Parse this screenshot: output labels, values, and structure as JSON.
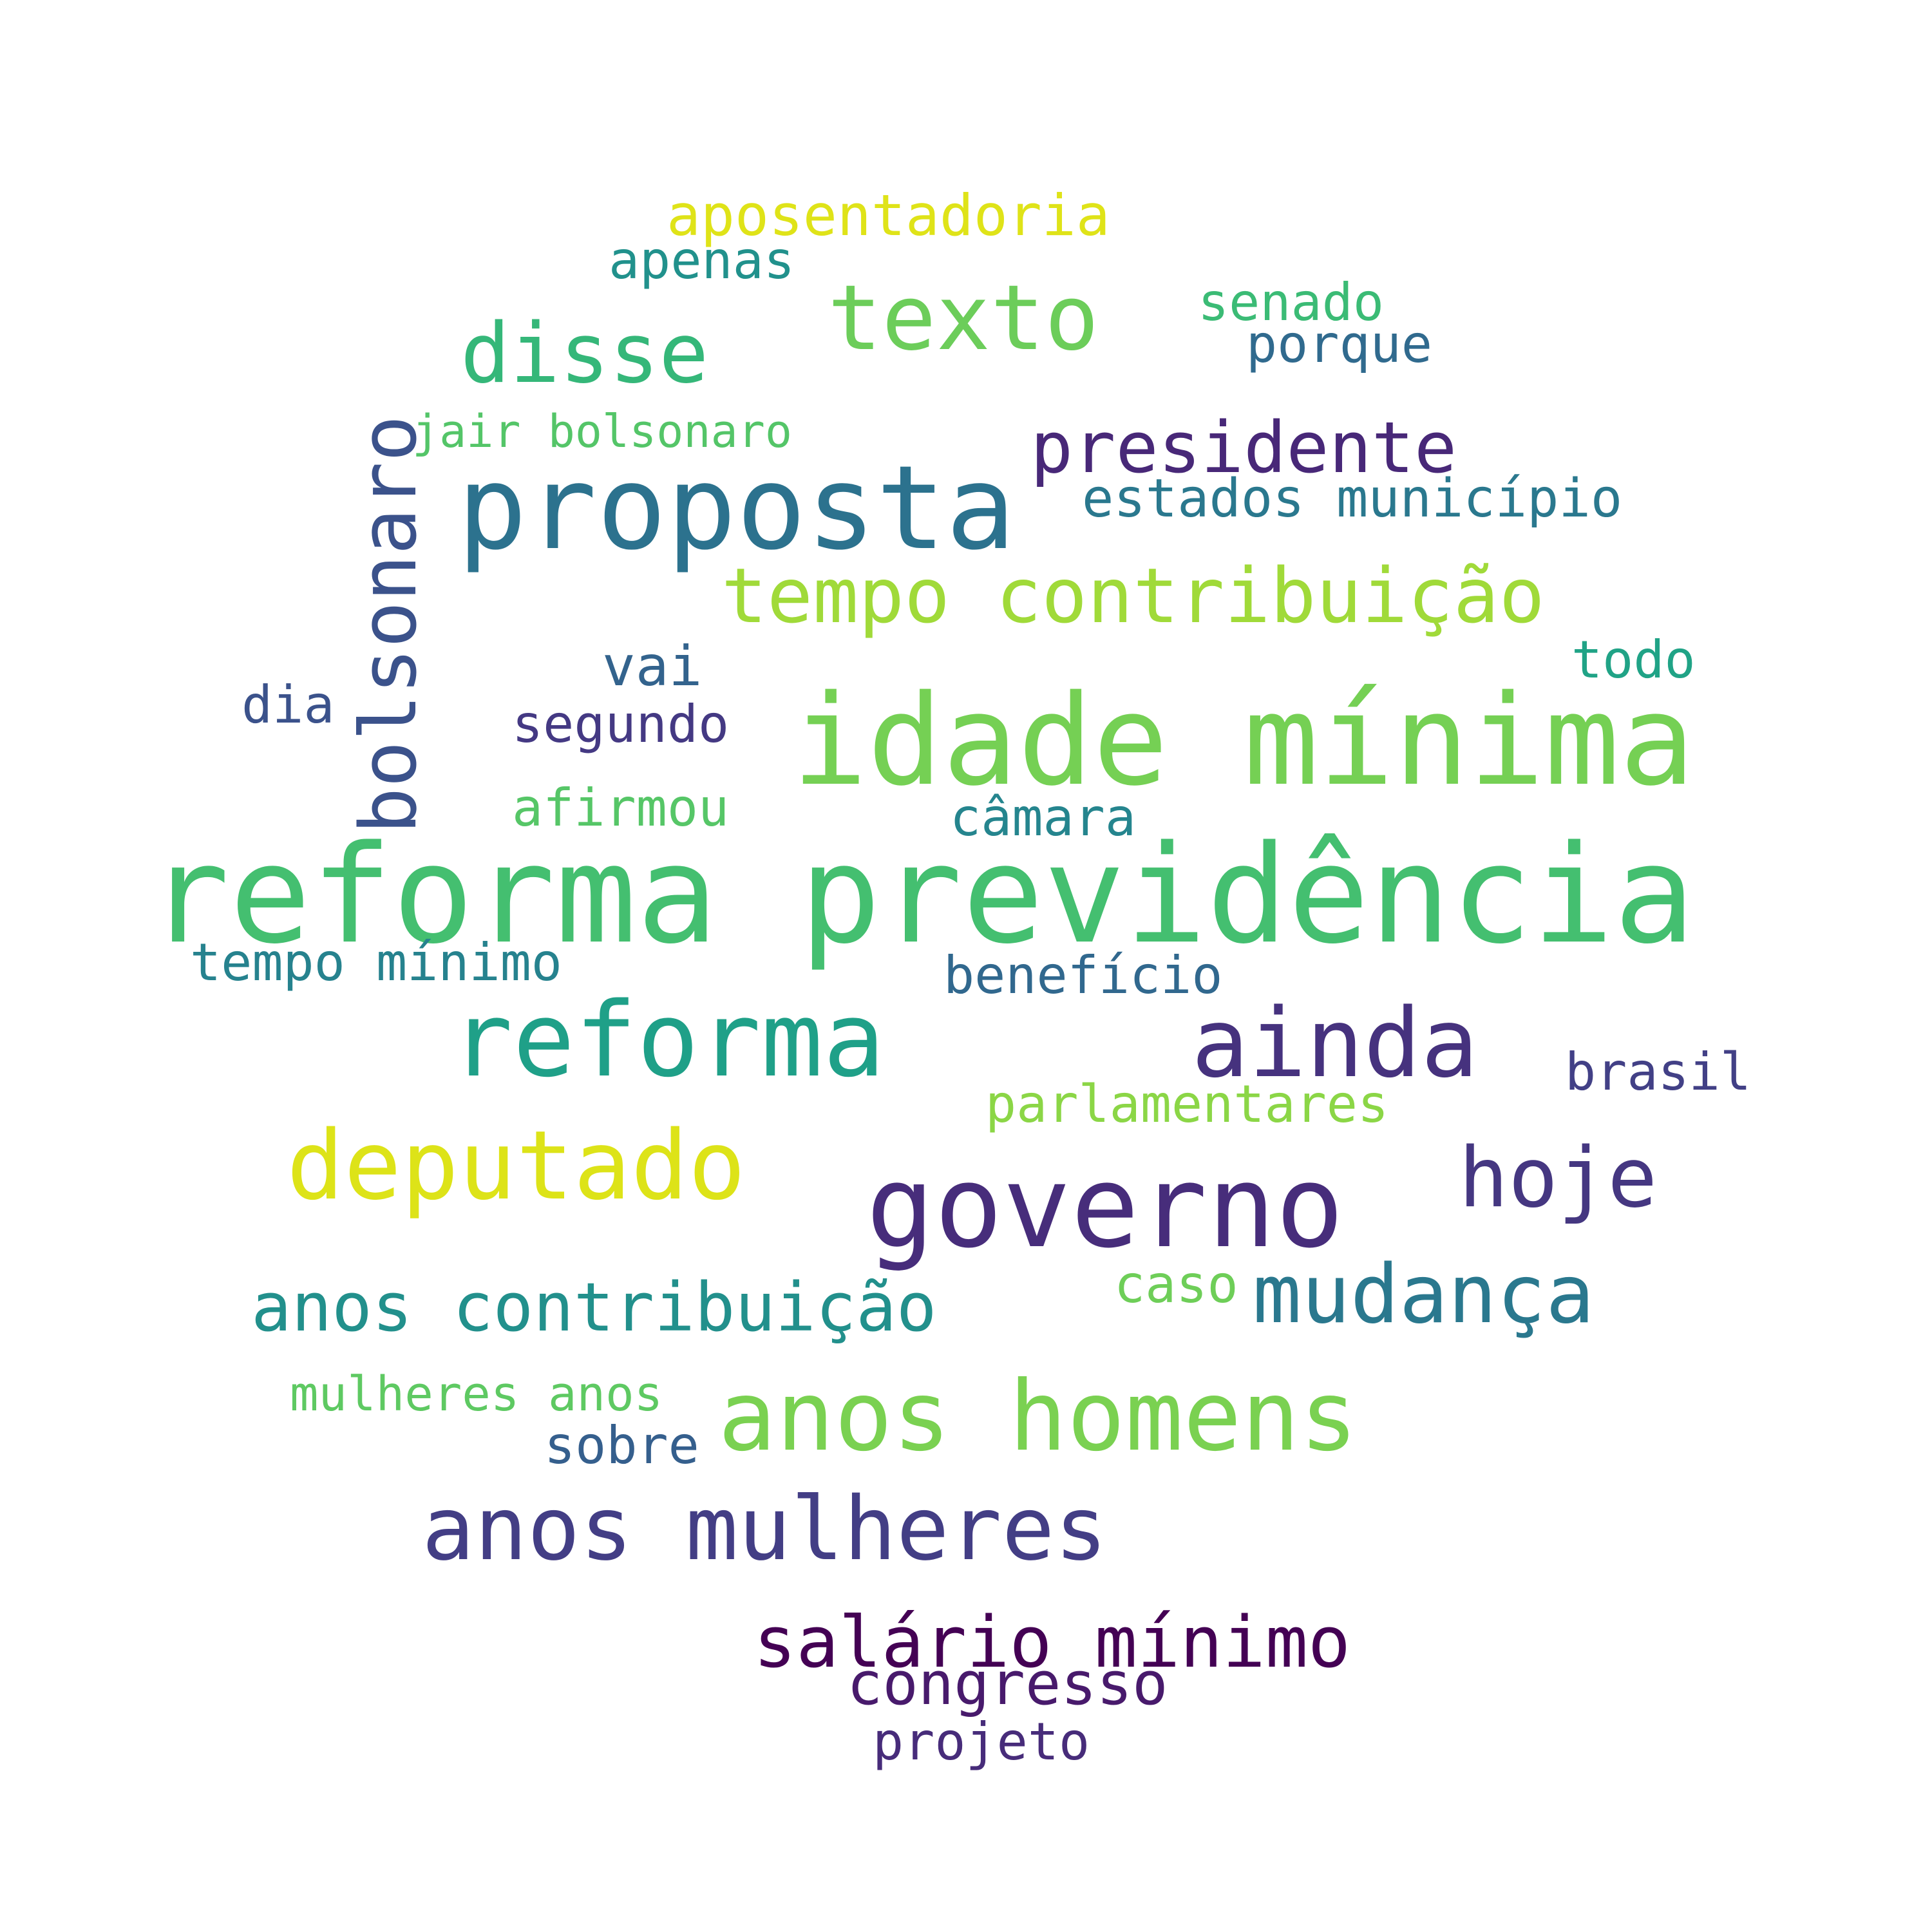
{
  "colors": {
    "background": "#ffffff"
  },
  "words": [
    {
      "text": "reforma previdência",
      "weight": 1.0,
      "color": "#44bf70"
    },
    {
      "text": "idade mínima",
      "weight": 0.91,
      "color": "#75d054"
    },
    {
      "text": "proposta",
      "weight": 0.85,
      "color": "#2c728e"
    },
    {
      "text": "governo",
      "weight": 0.82,
      "color": "#472d7b"
    },
    {
      "text": "reforma",
      "weight": 0.74,
      "color": "#1fa088"
    },
    {
      "text": "anos homens",
      "weight": 0.7,
      "color": "#7ad151"
    },
    {
      "text": "ainda",
      "weight": 0.7,
      "color": "#46327e"
    },
    {
      "text": "deputado",
      "weight": 0.7,
      "color": "#dde318"
    },
    {
      "text": "texto",
      "weight": 0.65,
      "color": "#6ccd5a"
    },
    {
      "text": "anos mulheres",
      "weight": 0.64,
      "color": "#433e85"
    },
    {
      "text": "hoje",
      "weight": 0.6,
      "color": "#453781"
    },
    {
      "text": "disse",
      "weight": 0.6,
      "color": "#35b779"
    },
    {
      "text": "mudança",
      "weight": 0.6,
      "color": "#2a788e"
    },
    {
      "text": "bolsonaro",
      "weight": 0.58,
      "color": "#3b528b"
    },
    {
      "text": "tempo contribuição",
      "weight": 0.56,
      "color": "#a0da39"
    },
    {
      "text": "presidente",
      "weight": 0.52,
      "color": "#482878"
    },
    {
      "text": "salário mínimo",
      "weight": 0.52,
      "color": "#440154"
    },
    {
      "text": "anos contribuição",
      "weight": 0.5,
      "color": "#22908c"
    },
    {
      "text": "congresso",
      "weight": 0.44,
      "color": "#481a6c"
    },
    {
      "text": "aposentadoria",
      "weight": 0.42,
      "color": "#dfe318"
    },
    {
      "text": "vai",
      "weight": 0.41,
      "color": "#33638d"
    },
    {
      "text": "estados município",
      "weight": 0.39,
      "color": "#2a788e"
    },
    {
      "text": "apenas",
      "weight": 0.38,
      "color": "#21918c"
    },
    {
      "text": "senado",
      "weight": 0.38,
      "color": "#3bbb75"
    },
    {
      "text": "porque",
      "weight": 0.38,
      "color": "#306a8e"
    },
    {
      "text": "todo",
      "weight": 0.38,
      "color": "#20a386"
    },
    {
      "text": "segundo",
      "weight": 0.38,
      "color": "#443983"
    },
    {
      "text": "afirmou",
      "weight": 0.38,
      "color": "#56c667"
    },
    {
      "text": "câmara",
      "weight": 0.38,
      "color": "#25858e"
    },
    {
      "text": "benefício",
      "weight": 0.38,
      "color": "#31688e"
    },
    {
      "text": "brasil",
      "weight": 0.38,
      "color": "#424086"
    },
    {
      "text": "parlamentares",
      "weight": 0.38,
      "color": "#8bd646"
    },
    {
      "text": "caso",
      "weight": 0.38,
      "color": "#6ece58"
    },
    {
      "text": "tempo mínimo",
      "weight": 0.38,
      "color": "#26828e"
    },
    {
      "text": "dia",
      "weight": 0.38,
      "color": "#3b528b"
    },
    {
      "text": "sobre",
      "weight": 0.38,
      "color": "#355f8d"
    },
    {
      "text": "projeto",
      "weight": 0.38,
      "color": "#472c7a"
    },
    {
      "text": "mulheres anos",
      "weight": 0.35,
      "color": "#5ec962"
    },
    {
      "text": "jair bolsonaro",
      "weight": 0.33,
      "color": "#54c568"
    }
  ]
}
